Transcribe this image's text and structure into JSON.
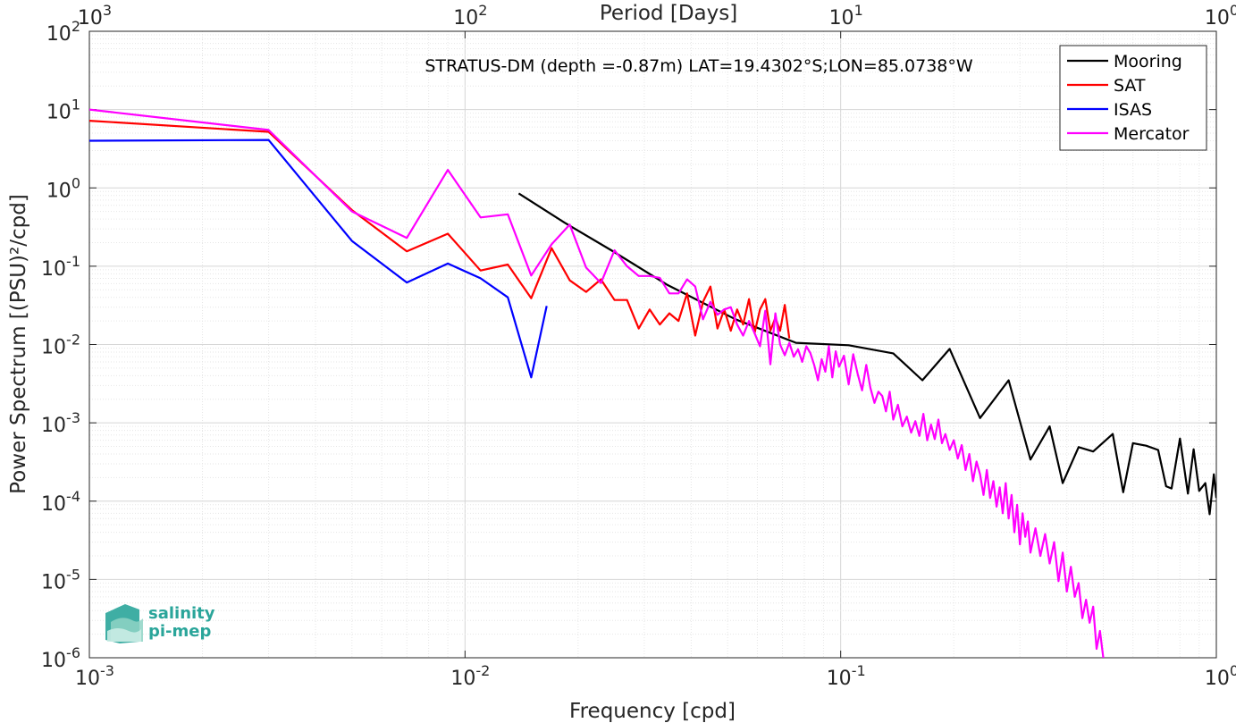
{
  "chart_data": {
    "type": "line",
    "title": "STRATUS-DM (depth =-0.87m) LAT=19.4302°S;LON=85.0738°W",
    "xlabel": "Frequency [cpd]",
    "ylabel": "Power Spectrum [(PSU)²/cpd]",
    "x2label": "Period [Days]",
    "xscale": "log",
    "yscale": "log",
    "xlim": [
      0.001,
      1
    ],
    "ylim": [
      1e-06,
      100
    ],
    "grid": true,
    "legend_position": "top-right",
    "x_ticks": [
      {
        "base": "10",
        "exp": "-3",
        "value": 0.001
      },
      {
        "base": "10",
        "exp": "-2",
        "value": 0.01
      },
      {
        "base": "10",
        "exp": "-1",
        "value": 0.1
      },
      {
        "base": "10",
        "exp": "0",
        "value": 1
      }
    ],
    "x2_ticks": [
      {
        "base": "10",
        "exp": "3",
        "value": 0.001
      },
      {
        "base": "10",
        "exp": "2",
        "value": 0.01
      },
      {
        "base": "10",
        "exp": "1",
        "value": 0.1
      },
      {
        "base": "10",
        "exp": "0",
        "value": 1
      }
    ],
    "y_ticks": [
      {
        "base": "10",
        "exp": "2",
        "value": 100
      },
      {
        "base": "10",
        "exp": "1",
        "value": 10
      },
      {
        "base": "10",
        "exp": "0",
        "value": 1
      },
      {
        "base": "10",
        "exp": "-1",
        "value": 0.1
      },
      {
        "base": "10",
        "exp": "-2",
        "value": 0.01
      },
      {
        "base": "10",
        "exp": "-3",
        "value": 0.001
      },
      {
        "base": "10",
        "exp": "-4",
        "value": 0.0001
      },
      {
        "base": "10",
        "exp": "-5",
        "value": 1e-05
      },
      {
        "base": "10",
        "exp": "-6",
        "value": 1e-06
      }
    ],
    "series": [
      {
        "name": "Mooring",
        "color": "#000000",
        "points": [
          [
            0.0139,
            0.85
          ],
          [
            0.0184,
            0.36
          ],
          [
            0.0245,
            0.16
          ],
          [
            0.0345,
            0.058
          ],
          [
            0.0525,
            0.021
          ],
          [
            0.076,
            0.0105
          ],
          [
            0.105,
            0.0098
          ],
          [
            0.138,
            0.0077
          ],
          [
            0.165,
            0.0035
          ],
          [
            0.195,
            0.0088
          ],
          [
            0.235,
            0.00115
          ],
          [
            0.28,
            0.0035
          ],
          [
            0.32,
            0.00034
          ],
          [
            0.36,
            0.0009
          ],
          [
            0.39,
            0.00017
          ],
          [
            0.43,
            0.00049
          ],
          [
            0.47,
            0.00043
          ],
          [
            0.53,
            0.00072
          ],
          [
            0.565,
            0.00013
          ],
          [
            0.6,
            0.00055
          ],
          [
            0.65,
            0.00051
          ],
          [
            0.7,
            0.00045
          ],
          [
            0.735,
            0.000155
          ],
          [
            0.76,
            0.000145
          ],
          [
            0.8,
            0.00063
          ],
          [
            0.84,
            0.000125
          ],
          [
            0.87,
            0.00046
          ],
          [
            0.9,
            0.000135
          ],
          [
            0.935,
            0.00017
          ],
          [
            0.96,
            6.8e-05
          ],
          [
            0.985,
            0.00022
          ],
          [
            1.0,
            0.00011
          ]
        ]
      },
      {
        "name": "SAT",
        "color": "#ff0000",
        "points": [
          [
            0.001,
            7.2
          ],
          [
            0.003,
            5.2
          ],
          [
            0.005,
            0.52
          ],
          [
            0.007,
            0.155
          ],
          [
            0.009,
            0.26
          ],
          [
            0.011,
            0.088
          ],
          [
            0.013,
            0.105
          ],
          [
            0.015,
            0.039
          ],
          [
            0.017,
            0.17
          ],
          [
            0.019,
            0.066
          ],
          [
            0.021,
            0.047
          ],
          [
            0.023,
            0.068
          ],
          [
            0.025,
            0.037
          ],
          [
            0.027,
            0.037
          ],
          [
            0.029,
            0.016
          ],
          [
            0.031,
            0.028
          ],
          [
            0.033,
            0.018
          ],
          [
            0.035,
            0.025
          ],
          [
            0.037,
            0.02
          ],
          [
            0.039,
            0.045
          ],
          [
            0.041,
            0.013
          ],
          [
            0.043,
            0.035
          ],
          [
            0.045,
            0.055
          ],
          [
            0.047,
            0.016
          ],
          [
            0.049,
            0.028
          ],
          [
            0.051,
            0.015
          ],
          [
            0.053,
            0.028
          ],
          [
            0.055,
            0.018
          ],
          [
            0.057,
            0.038
          ],
          [
            0.059,
            0.014
          ],
          [
            0.061,
            0.028
          ],
          [
            0.063,
            0.038
          ],
          [
            0.065,
            0.015
          ],
          [
            0.067,
            0.022
          ],
          [
            0.069,
            0.015
          ],
          [
            0.071,
            0.032
          ],
          [
            0.073,
            0.012
          ]
        ]
      },
      {
        "name": "ISAS",
        "color": "#0000ff",
        "points": [
          [
            0.001,
            4.0
          ],
          [
            0.003,
            4.1
          ],
          [
            0.005,
            0.21
          ],
          [
            0.007,
            0.062
          ],
          [
            0.009,
            0.108
          ],
          [
            0.011,
            0.07
          ],
          [
            0.013,
            0.04
          ],
          [
            0.015,
            0.0038
          ],
          [
            0.0165,
            0.031
          ]
        ]
      },
      {
        "name": "Mercator",
        "color": "#ff00ff",
        "points": [
          [
            0.001,
            10.0
          ],
          [
            0.003,
            5.5
          ],
          [
            0.005,
            0.5
          ],
          [
            0.007,
            0.23
          ],
          [
            0.009,
            1.7
          ],
          [
            0.011,
            0.42
          ],
          [
            0.013,
            0.46
          ],
          [
            0.015,
            0.076
          ],
          [
            0.017,
            0.19
          ],
          [
            0.019,
            0.34
          ],
          [
            0.021,
            0.096
          ],
          [
            0.023,
            0.061
          ],
          [
            0.025,
            0.16
          ],
          [
            0.027,
            0.1
          ],
          [
            0.029,
            0.075
          ],
          [
            0.031,
            0.075
          ],
          [
            0.033,
            0.071
          ],
          [
            0.035,
            0.045
          ],
          [
            0.037,
            0.045
          ],
          [
            0.039,
            0.068
          ],
          [
            0.041,
            0.055
          ],
          [
            0.043,
            0.021
          ],
          [
            0.045,
            0.035
          ],
          [
            0.047,
            0.024
          ],
          [
            0.049,
            0.028
          ],
          [
            0.051,
            0.03
          ],
          [
            0.053,
            0.018
          ],
          [
            0.055,
            0.013
          ],
          [
            0.057,
            0.02
          ],
          [
            0.059,
            0.014
          ],
          [
            0.061,
            0.0095
          ],
          [
            0.063,
            0.027
          ],
          [
            0.065,
            0.0056
          ],
          [
            0.067,
            0.025
          ],
          [
            0.069,
            0.01
          ],
          [
            0.071,
            0.0073
          ],
          [
            0.073,
            0.0105
          ],
          [
            0.075,
            0.007
          ],
          [
            0.077,
            0.0087
          ],
          [
            0.079,
            0.006
          ],
          [
            0.081,
            0.0095
          ],
          [
            0.083,
            0.0078
          ],
          [
            0.085,
            0.0055
          ],
          [
            0.087,
            0.0035
          ],
          [
            0.089,
            0.0065
          ],
          [
            0.091,
            0.0045
          ],
          [
            0.093,
            0.0095
          ],
          [
            0.095,
            0.0038
          ],
          [
            0.097,
            0.0082
          ],
          [
            0.099,
            0.0052
          ],
          [
            0.102,
            0.0072
          ],
          [
            0.105,
            0.0031
          ],
          [
            0.108,
            0.0075
          ],
          [
            0.111,
            0.0042
          ],
          [
            0.114,
            0.0026
          ],
          [
            0.117,
            0.0055
          ],
          [
            0.12,
            0.0028
          ],
          [
            0.123,
            0.0018
          ],
          [
            0.126,
            0.0025
          ],
          [
            0.129,
            0.0022
          ],
          [
            0.132,
            0.0014
          ],
          [
            0.135,
            0.0025
          ],
          [
            0.138,
            0.0011
          ],
          [
            0.142,
            0.0017
          ],
          [
            0.146,
            0.0009
          ],
          [
            0.15,
            0.0012
          ],
          [
            0.154,
            0.00075
          ],
          [
            0.158,
            0.00105
          ],
          [
            0.162,
            0.00068
          ],
          [
            0.166,
            0.0013
          ],
          [
            0.17,
            0.0006
          ],
          [
            0.174,
            0.00095
          ],
          [
            0.178,
            0.00062
          ],
          [
            0.182,
            0.0011
          ],
          [
            0.186,
            0.00055
          ],
          [
            0.19,
            0.00072
          ],
          [
            0.195,
            0.00045
          ],
          [
            0.2,
            0.0006
          ],
          [
            0.205,
            0.00035
          ],
          [
            0.21,
            0.00052
          ],
          [
            0.215,
            0.00025
          ],
          [
            0.22,
            0.0004
          ],
          [
            0.225,
            0.00018
          ],
          [
            0.23,
            0.00032
          ],
          [
            0.235,
            0.00022
          ],
          [
            0.24,
            0.00012
          ],
          [
            0.245,
            0.00025
          ],
          [
            0.25,
            0.00011
          ],
          [
            0.255,
            0.00018
          ],
          [
            0.26,
            8.5e-05
          ],
          [
            0.265,
            0.00015
          ],
          [
            0.27,
            7e-05
          ],
          [
            0.275,
            0.00017
          ],
          [
            0.28,
            6e-05
          ],
          [
            0.285,
            0.00012
          ],
          [
            0.29,
            4e-05
          ],
          [
            0.295,
            9e-05
          ],
          [
            0.3,
            2.8e-05
          ],
          [
            0.305,
            7e-05
          ],
          [
            0.31,
            3.5e-05
          ],
          [
            0.315,
            5.5e-05
          ],
          [
            0.32,
            2.2e-05
          ],
          [
            0.33,
            4.5e-05
          ],
          [
            0.34,
            2e-05
          ],
          [
            0.35,
            3.8e-05
          ],
          [
            0.36,
            1.6e-05
          ],
          [
            0.37,
            3e-05
          ],
          [
            0.38,
            9.5e-06
          ],
          [
            0.39,
            2.2e-05
          ],
          [
            0.4,
            7e-06
          ],
          [
            0.41,
            1.45e-05
          ],
          [
            0.42,
            6e-06
          ],
          [
            0.43,
            9e-06
          ],
          [
            0.44,
            3.2e-06
          ],
          [
            0.45,
            5.5e-06
          ],
          [
            0.46,
            2.8e-06
          ],
          [
            0.47,
            4.5e-06
          ],
          [
            0.48,
            1.3e-06
          ],
          [
            0.49,
            2.2e-06
          ],
          [
            0.5,
            1e-06
          ]
        ]
      }
    ]
  },
  "logo": {
    "line1": "salinity",
    "line2": "pi-mep"
  }
}
